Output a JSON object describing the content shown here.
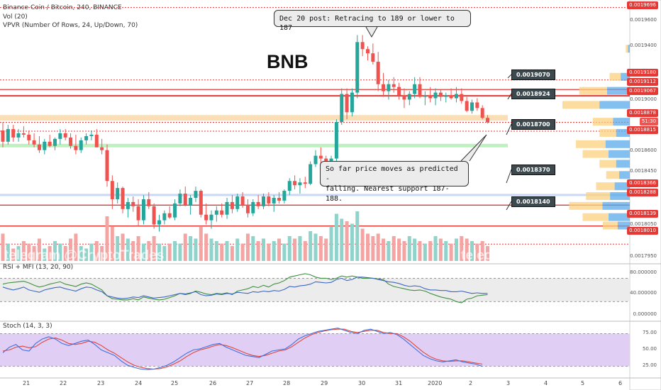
{
  "header": {
    "symbol_line": "Binance Coin / Bitcoin, 240, BINANCE",
    "vol_line": "Vol (20)",
    "vpvr_line": "VPVR (Number Of Rows, 24, Up/Down, 70)"
  },
  "big_label": "BNB",
  "callouts": {
    "top": "Dec 20 post: Retracing to 189 or lower to 187",
    "middle_line1": "So far price moves as predicted -",
    "middle_line2": "falling. Nearest support 187-188."
  },
  "watermark": {
    "left": "telegram @CryptoTrades",
    "right": "telegram @CryptoTrades"
  },
  "panels": {
    "rsi_label": "RSI + MFI (13, 20, 90)",
    "stoch_label": "Stoch (14, 3, 3)"
  },
  "colors": {
    "up": "#26a69a",
    "down": "#ef5350",
    "vol_up": "#8fd3cb",
    "vol_down": "#f4a4a2",
    "red_line": "#e53935",
    "zone_orange": "#f9d8a8",
    "zone_green": "#b6efb6",
    "zone_blue": "#c8d8f5",
    "rsi_line": "#3b67c4",
    "mfi_line": "#3f8f3f",
    "stoch_k": "#3f6fe0",
    "stoch_d": "#e0463a",
    "stoch_bg": "#e1cef5"
  },
  "price_levels": {
    "horizontal_tags": [
      "0.0019696",
      "0.0019180",
      "0.0019112",
      "0.0019067",
      "0.0018878",
      "0.0018815",
      "0.0018366",
      "0.0018288",
      "0.0018139",
      "0.0018010"
    ],
    "pointer_labels": [
      "0.0019070",
      "0.0018924",
      "0.0018700",
      "0.0018370",
      "0.0018140"
    ],
    "current_time_label": "51:30"
  },
  "axis": {
    "price_ticks": [
      "0.0019600",
      "0.0019400",
      "0.0019000",
      "0.0018600",
      "0.0018450",
      "0.0018050",
      "0.0017950"
    ],
    "rsi_ticks": [
      "80.000000",
      "40.000000",
      "0.000000"
    ],
    "stoch_ticks": [
      "75.00",
      "50.00",
      "25.00"
    ],
    "x_ticks": [
      "21",
      "22",
      "23",
      "24",
      "25",
      "26",
      "27",
      "28",
      "29",
      "30",
      "31",
      "2020",
      "2",
      "3",
      "4",
      "5",
      "6"
    ]
  },
  "chart_data": {
    "type": "candlestick",
    "symbol": "Binance Coin / Bitcoin",
    "timeframe": "240",
    "exchange": "BINANCE",
    "ylim": [
      0.001788,
      0.001975
    ],
    "x_range": [
      "Dec 20",
      "Jan 6"
    ],
    "candles_ohlc": [
      [
        0.001882,
        0.001888,
        0.00187,
        0.001874
      ],
      [
        0.001874,
        0.001886,
        0.001872,
        0.001883
      ],
      [
        0.001883,
        0.001886,
        0.001874,
        0.001877
      ],
      [
        0.001877,
        0.001883,
        0.001874,
        0.00188
      ],
      [
        0.00188,
        0.001885,
        0.001877,
        0.001879
      ],
      [
        0.001879,
        0.001882,
        0.001872,
        0.001875
      ],
      [
        0.001875,
        0.00188,
        0.00187,
        0.001872
      ],
      [
        0.001872,
        0.001878,
        0.001866,
        0.001868
      ],
      [
        0.001868,
        0.001876,
        0.001865,
        0.001874
      ],
      [
        0.001874,
        0.001879,
        0.00187,
        0.001871
      ],
      [
        0.001871,
        0.001877,
        0.001868,
        0.001876
      ],
      [
        0.001876,
        0.001883,
        0.001872,
        0.00188
      ],
      [
        0.00188,
        0.001883,
        0.001875,
        0.001877
      ],
      [
        0.001877,
        0.00188,
        0.001869,
        0.001871
      ],
      [
        0.001871,
        0.001879,
        0.001865,
        0.001868
      ],
      [
        0.001868,
        0.001877,
        0.001866,
        0.001875
      ],
      [
        0.001875,
        0.00188,
        0.001872,
        0.001878
      ],
      [
        0.001878,
        0.001882,
        0.001875,
        0.001879
      ],
      [
        0.001879,
        0.001883,
        0.00187,
        0.00187
      ],
      [
        0.00187,
        0.001876,
        0.001865,
        0.001868
      ],
      [
        0.001868,
        0.001872,
        0.001842,
        0.001846
      ],
      [
        0.001846,
        0.00185,
        0.001826,
        0.001833
      ],
      [
        0.001833,
        0.001845,
        0.00183,
        0.001841
      ],
      [
        0.001841,
        0.001842,
        0.001823,
        0.001826
      ],
      [
        0.001826,
        0.001834,
        0.00182,
        0.001831
      ],
      [
        0.001831,
        0.001835,
        0.001824,
        0.001828
      ],
      [
        0.001828,
        0.001833,
        0.001814,
        0.001818
      ],
      [
        0.001818,
        0.001836,
        0.001815,
        0.001833
      ],
      [
        0.001833,
        0.001838,
        0.001826,
        0.001828
      ],
      [
        0.001828,
        0.00183,
        0.001812,
        0.001815
      ],
      [
        0.001815,
        0.001822,
        0.00181,
        0.001818
      ],
      [
        0.001818,
        0.001825,
        0.001815,
        0.001823
      ],
      [
        0.001823,
        0.001828,
        0.001819,
        0.00182
      ],
      [
        0.00182,
        0.001833,
        0.001818,
        0.00183
      ],
      [
        0.00183,
        0.00184,
        0.001828,
        0.001837
      ],
      [
        0.001837,
        0.001842,
        0.001828,
        0.001829
      ],
      [
        0.001829,
        0.001836,
        0.001822,
        0.001834
      ],
      [
        0.001834,
        0.001842,
        0.001831,
        0.001839
      ],
      [
        0.001839,
        0.00184,
        0.00182,
        0.001822
      ],
      [
        0.001822,
        0.00183,
        0.001815,
        0.001818
      ],
      [
        0.001818,
        0.001825,
        0.001812,
        0.001822
      ],
      [
        0.001822,
        0.001828,
        0.001817,
        0.001825
      ],
      [
        0.001825,
        0.00183,
        0.00182,
        0.001822
      ],
      [
        0.001822,
        0.001834,
        0.001819,
        0.001831
      ],
      [
        0.001831,
        0.001836,
        0.001823,
        0.001826
      ],
      [
        0.001826,
        0.001837,
        0.001824,
        0.001835
      ],
      [
        0.001835,
        0.001838,
        0.001827,
        0.001829
      ],
      [
        0.001829,
        0.001833,
        0.00182,
        0.001823
      ],
      [
        0.001823,
        0.001833,
        0.001821,
        0.001831
      ],
      [
        0.001831,
        0.001836,
        0.001826,
        0.001828
      ],
      [
        0.001828,
        0.001837,
        0.001826,
        0.001835
      ],
      [
        0.001835,
        0.001838,
        0.001828,
        0.00183
      ],
      [
        0.00183,
        0.001836,
        0.001824,
        0.001834
      ],
      [
        0.001834,
        0.001838,
        0.00183,
        0.001832
      ],
      [
        0.001832,
        0.00184,
        0.00183,
        0.001839
      ],
      [
        0.001839,
        0.001848,
        0.001836,
        0.001846
      ],
      [
        0.001846,
        0.00185,
        0.00184,
        0.001843
      ],
      [
        0.001843,
        0.001848,
        0.001837,
        0.001845
      ],
      [
        0.001845,
        0.001849,
        0.001841,
        0.001844
      ],
      [
        0.001844,
        0.00186,
        0.001843,
        0.001858
      ],
      [
        0.001858,
        0.001868,
        0.001856,
        0.001864
      ],
      [
        0.001864,
        0.00187,
        0.001857,
        0.001862
      ],
      [
        0.001862,
        0.001864,
        0.001856,
        0.001858
      ],
      [
        0.001858,
        0.001864,
        0.001857,
        0.001862
      ],
      [
        0.001862,
        0.00189,
        0.00186,
        0.001888
      ],
      [
        0.001888,
        0.001912,
        0.001886,
        0.001908
      ],
      [
        0.001908,
        0.001912,
        0.00189,
        0.001895
      ],
      [
        0.001895,
        0.001912,
        0.001892,
        0.001909
      ],
      [
        0.001909,
        0.00195,
        0.001905,
        0.001945
      ],
      [
        0.001945,
        0.00195,
        0.001935,
        0.00194
      ],
      [
        0.00194,
        0.001942,
        0.001932,
        0.001937
      ],
      [
        0.001937,
        0.001944,
        0.001929,
        0.001931
      ],
      [
        0.001931,
        0.001938,
        0.00191,
        0.001915
      ],
      [
        0.001915,
        0.001923,
        0.001906,
        0.00191
      ],
      [
        0.00191,
        0.001918,
        0.001904,
        0.001915
      ],
      [
        0.001915,
        0.00192,
        0.001909,
        0.001913
      ],
      [
        0.001913,
        0.001916,
        0.001904,
        0.001907
      ],
      [
        0.001907,
        0.001912,
        0.001898,
        0.001904
      ],
      [
        0.001904,
        0.00191,
        0.0019,
        0.001908
      ],
      [
        0.001908,
        0.00192,
        0.001905,
        0.001915
      ],
      [
        0.001915,
        0.00192,
        0.001905,
        0.001906
      ],
      [
        0.001906,
        0.00191,
        0.0019,
        0.001907
      ],
      [
        0.001907,
        0.001913,
        0.001902,
        0.001905
      ],
      [
        0.001905,
        0.001912,
        0.0019,
        0.001909
      ],
      [
        0.001909,
        0.001911,
        0.001903,
        0.001906
      ],
      [
        0.001906,
        0.001909,
        0.001902,
        0.001907
      ],
      [
        0.001907,
        0.001912,
        0.001904,
        0.001905
      ],
      [
        0.001905,
        0.001913,
        0.001902,
        0.001908
      ],
      [
        0.001908,
        0.001912,
        0.001901,
        0.001903
      ],
      [
        0.001903,
        0.001906,
        0.001895,
        0.001896
      ],
      [
        0.001896,
        0.001904,
        0.001894,
        0.001902
      ],
      [
        0.001902,
        0.001905,
        0.001896,
        0.001898
      ],
      [
        0.001898,
        0.0019,
        0.00189,
        0.001891
      ],
      [
        0.001891,
        0.001893,
        0.001887,
        0.001888
      ]
    ],
    "volume_relative": [
      0.55,
      0.35,
      0.25,
      0.3,
      0.4,
      0.35,
      0.3,
      0.45,
      0.25,
      0.3,
      0.4,
      0.35,
      0.3,
      0.45,
      0.55,
      0.3,
      0.25,
      0.35,
      0.4,
      0.3,
      0.9,
      0.7,
      0.5,
      0.55,
      0.45,
      0.4,
      0.5,
      0.35,
      0.4,
      0.5,
      0.35,
      0.3,
      0.35,
      0.4,
      0.35,
      0.55,
      0.5,
      0.45,
      0.7,
      0.55,
      0.45,
      0.4,
      0.35,
      0.4,
      0.3,
      0.45,
      0.35,
      0.55,
      0.5,
      0.4,
      0.45,
      0.35,
      0.4,
      0.45,
      0.35,
      0.5,
      0.45,
      0.5,
      0.4,
      0.6,
      0.55,
      0.5,
      0.45,
      0.7,
      0.95,
      0.85,
      0.8,
      0.75,
      1.0,
      0.65,
      0.55,
      0.5,
      0.55,
      0.45,
      0.4,
      0.5,
      0.45,
      0.4,
      0.5,
      0.45,
      0.4,
      0.35,
      0.4,
      0.5,
      0.45,
      0.4,
      0.35,
      0.45,
      0.5,
      0.45,
      0.4,
      0.35,
      0.4,
      0.3
    ],
    "rsi": [
      55,
      52,
      50,
      52,
      55,
      50,
      48,
      46,
      50,
      52,
      54,
      55,
      52,
      50,
      48,
      52,
      55,
      54,
      50,
      47,
      40,
      38,
      36,
      35,
      36,
      38,
      37,
      40,
      38,
      36,
      37,
      38,
      40,
      42,
      44,
      43,
      45,
      47,
      42,
      40,
      41,
      43,
      42,
      44,
      43,
      46,
      45,
      44,
      47,
      46,
      48,
      47,
      49,
      48,
      51,
      56,
      55,
      57,
      58,
      60,
      64,
      63,
      62,
      63,
      68,
      70,
      66,
      68,
      72,
      72,
      71,
      70,
      68,
      66,
      64,
      63,
      61,
      58,
      56,
      57,
      56,
      52,
      50,
      50,
      49,
      49,
      47,
      47,
      48,
      46,
      44,
      45,
      44,
      44
    ],
    "mfi": [
      60,
      62,
      63,
      64,
      65,
      62,
      58,
      55,
      57,
      60,
      62,
      64,
      60,
      58,
      56,
      60,
      62,
      60,
      55,
      50,
      40,
      35,
      34,
      33,
      33,
      35,
      33,
      38,
      36,
      34,
      33,
      34,
      37,
      40,
      44,
      42,
      44,
      48,
      46,
      43,
      42,
      44,
      43,
      45,
      42,
      48,
      50,
      52,
      56,
      54,
      58,
      55,
      60,
      62,
      66,
      72,
      74,
      76,
      78,
      76,
      72,
      70,
      70,
      68,
      70,
      74,
      72,
      74,
      72,
      70,
      70,
      70,
      69,
      68,
      60,
      56,
      54,
      52,
      50,
      49,
      50,
      48,
      44,
      41,
      38,
      36,
      34,
      30,
      28,
      34,
      36,
      40,
      41,
      42
    ],
    "stoch_k": [
      45,
      55,
      60,
      50,
      48,
      62,
      70,
      74,
      70,
      62,
      58,
      62,
      66,
      68,
      60,
      50,
      45,
      40,
      30,
      22,
      18,
      15,
      14,
      15,
      18,
      22,
      28,
      36,
      44,
      50,
      52,
      56,
      60,
      62,
      55,
      50,
      45,
      40,
      38,
      36,
      42,
      48,
      50,
      52,
      60,
      70,
      76,
      80,
      84,
      86,
      88,
      90,
      86,
      82,
      80,
      86,
      88,
      84,
      80,
      82,
      78,
      70,
      60,
      50,
      40,
      34,
      30,
      28,
      30,
      32,
      28,
      26,
      24,
      20
    ],
    "stoch_d": [
      48,
      50,
      55,
      57,
      54,
      56,
      64,
      70,
      72,
      68,
      62,
      60,
      62,
      66,
      64,
      58,
      50,
      44,
      36,
      28,
      22,
      18,
      16,
      15,
      16,
      19,
      24,
      30,
      38,
      45,
      50,
      53,
      57,
      60,
      58,
      54,
      49,
      44,
      40,
      38,
      40,
      44,
      48,
      50,
      56,
      64,
      72,
      78,
      82,
      85,
      87,
      88,
      88,
      84,
      82,
      84,
      86,
      86,
      82,
      80,
      80,
      74,
      66,
      56,
      46,
      38,
      33,
      30,
      29,
      30,
      30,
      28,
      26,
      24
    ]
  }
}
